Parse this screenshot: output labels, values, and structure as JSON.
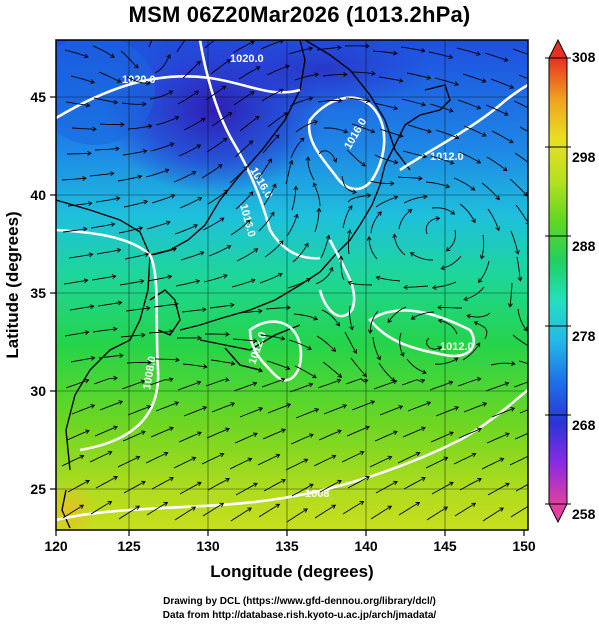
{
  "title": "MSM 06Z20Mar2026 (1013.2hPa)",
  "x_axis": {
    "label": "Longitude (degrees)",
    "ticks": [
      "120",
      "125",
      "130",
      "135",
      "140",
      "145",
      "150"
    ],
    "range": [
      120,
      150
    ]
  },
  "y_axis": {
    "label": "Latitude  (degrees)",
    "ticks": [
      "25",
      "30",
      "35",
      "40",
      "45"
    ],
    "range": [
      22.5,
      47.5
    ]
  },
  "colorbar": {
    "ticks": [
      "258",
      "268",
      "278",
      "288",
      "298",
      "308"
    ],
    "range": [
      258,
      308
    ],
    "colors": [
      "#e040a0",
      "#8a2be2",
      "#2a35d8",
      "#1e6fe8",
      "#22b8e8",
      "#22e0c0",
      "#20d060",
      "#60d820",
      "#b8e020",
      "#e8e020",
      "#f0a020",
      "#e83020"
    ]
  },
  "contours": {
    "labels": [
      "1020.0",
      "1020.0",
      "1012.0",
      "1016.0",
      "1016.0",
      "1008.0",
      "1012.0",
      "1012.0",
      "1016.0",
      "1008"
    ]
  },
  "credits": {
    "line1": "Drawing by DCL (https://www.gfd-dennou.org/library/dcl/)",
    "line2": "Data from http://database.rish.kyoto-u.ac.jp/arch/jmadata/"
  }
}
